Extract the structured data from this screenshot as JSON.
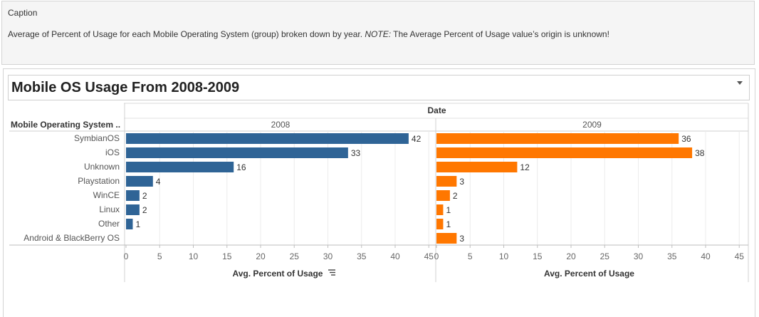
{
  "caption": {
    "heading": "Caption",
    "text_before": "Average of Percent of Usage for each Mobile Operating System (group) broken down by year. ",
    "text_note": "NOTE:",
    "text_after": " The Average Percent of Usage value’s origin is unknown!"
  },
  "viz": {
    "title": "Mobile OS Usage From 2008-2009"
  },
  "chart_data": {
    "type": "bar",
    "orientation": "horizontal",
    "column_header": "Date",
    "row_header": "Mobile Operating System ..",
    "categories": [
      "SymbianOS",
      "iOS",
      "Unknown",
      "Playstation",
      "WinCE",
      "Linux",
      "Other",
      "Android & BlackBerry OS"
    ],
    "series": [
      {
        "name": "2008",
        "color": "#2f6496",
        "values": [
          42,
          33,
          16,
          4,
          2,
          2,
          1,
          null
        ]
      },
      {
        "name": "2009",
        "color": "#ff7700",
        "values": [
          36,
          38,
          12,
          3,
          2,
          1,
          1,
          3
        ]
      }
    ],
    "xlabel": "Avg. Percent of Usage",
    "xlim": [
      0,
      45
    ],
    "xticks": [
      0,
      5,
      10,
      15,
      20,
      25,
      30,
      35,
      40,
      45
    ],
    "sort_icon": "sort-descending-icon",
    "grid": true
  }
}
